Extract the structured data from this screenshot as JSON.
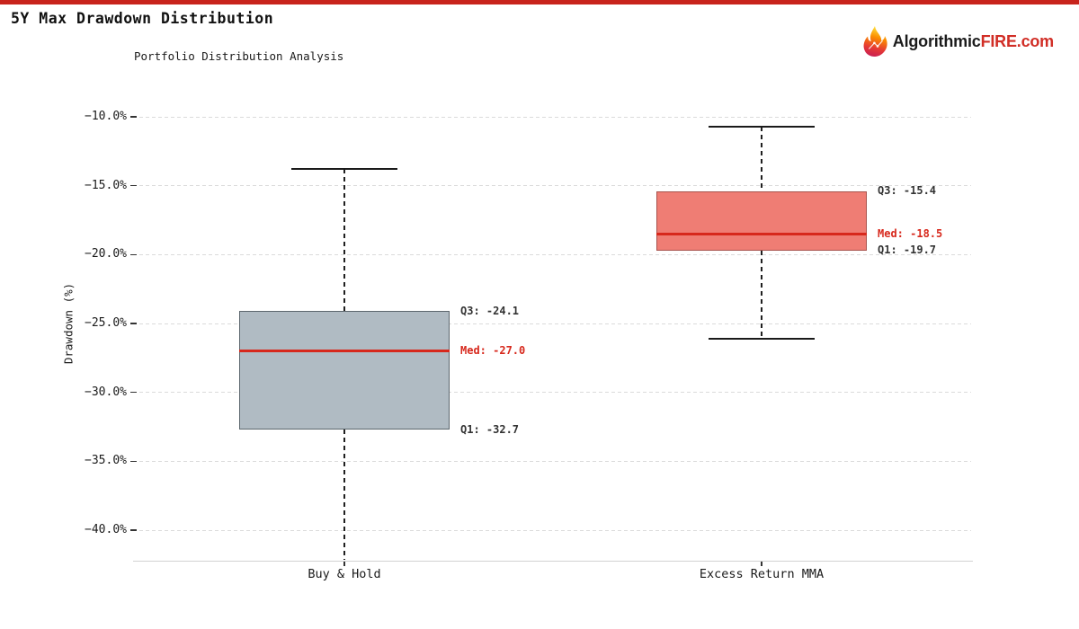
{
  "header": {
    "title": "5Y Max Drawdown Distribution",
    "logo": {
      "name": "AlgorithmicFIRE.com",
      "part_dark": "Algorithmic",
      "part_red": "FIRE.com",
      "red": "#d12e26"
    }
  },
  "chart_data": {
    "type": "boxplot",
    "title": "5Y Max Drawdown Distribution",
    "subtitle": "Portfolio Distribution Analysis",
    "ylabel": "Drawdown (%)",
    "xlabel": "",
    "grid": true,
    "legend_position": "none",
    "ylim": [
      -42.2,
      -8.0
    ],
    "yticks": [
      {
        "value": -10,
        "label": "−10.0%"
      },
      {
        "value": -15,
        "label": "−15.0%"
      },
      {
        "value": -20,
        "label": "−20.0%"
      },
      {
        "value": -25,
        "label": "−25.0%"
      },
      {
        "value": -30,
        "label": "−30.0%"
      },
      {
        "value": -35,
        "label": "−35.0%"
      },
      {
        "value": -40,
        "label": "−40.0%"
      }
    ],
    "categories": [
      "Buy & Hold",
      "Excess Return MMA"
    ],
    "series": [
      {
        "name": "Buy & Hold",
        "whisker_high": -13.8,
        "q3": -24.1,
        "median": -27.0,
        "q1": -32.7,
        "whisker_low": -42.2,
        "whisker_low_clipped": true,
        "annotations": {
          "q3": "Q3: -24.1",
          "med": "Med: -27.0",
          "q1": "Q1: -32.7"
        },
        "colors": {
          "fill": "#b0bbc3",
          "edge": "#5c666d"
        }
      },
      {
        "name": "Excess Return MMA",
        "whisker_high": -10.7,
        "q3": -15.4,
        "median": -18.5,
        "q1": -19.7,
        "whisker_low": -26.1,
        "whisker_low_clipped": false,
        "annotations": {
          "q3": "Q3: -15.4",
          "med": "Med: -18.5",
          "q1": "Q1: -19.7"
        },
        "colors": {
          "fill": "#ef7d74",
          "edge": "#a8534d"
        }
      }
    ],
    "colors": {
      "median_line": "#d7281c",
      "annotation_text": "#333333",
      "annotation_median_text": "#d7281c",
      "whisker": "#1f1f1f",
      "grid_line": "#dbdbdb",
      "axis_line": "#d2d2d2",
      "top_bar": "#c8241c"
    }
  }
}
